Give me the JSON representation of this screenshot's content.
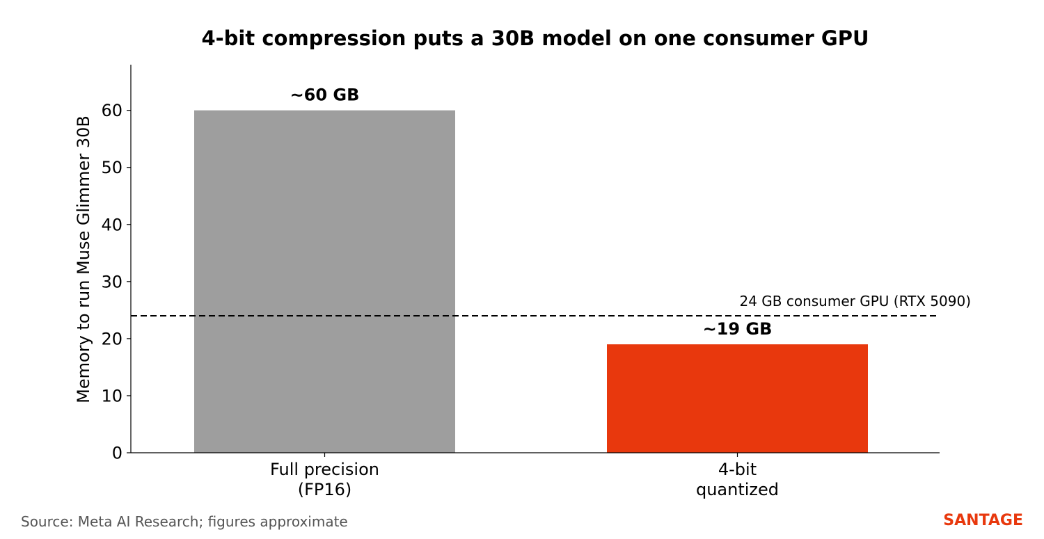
{
  "chart_data": {
    "type": "bar",
    "title": "4-bit compression puts a 30B model on one consumer GPU",
    "ylabel": "Memory to run Muse Glimmer 30B",
    "xlabel": "",
    "categories": [
      [
        "Full precision",
        "(FP16)"
      ],
      [
        "4-bit",
        "quantized"
      ]
    ],
    "values": [
      60,
      19
    ],
    "data_labels": [
      "~60 GB",
      "~19 GB"
    ],
    "bar_colors": [
      "#9e9e9e",
      "#e8380d"
    ],
    "ylim": [
      0,
      68
    ],
    "yticks": [
      0,
      10,
      20,
      30,
      40,
      50,
      60
    ],
    "reference_line": {
      "value": 24,
      "label": "24 GB consumer GPU (RTX 5090)",
      "style": "dashed",
      "color": "#000000"
    },
    "grid": false,
    "legend": "none"
  },
  "footer": {
    "source": "Source: Meta AI Research; figures approximate",
    "brand": "SANTAGE",
    "brand_color": "#e8380d"
  }
}
